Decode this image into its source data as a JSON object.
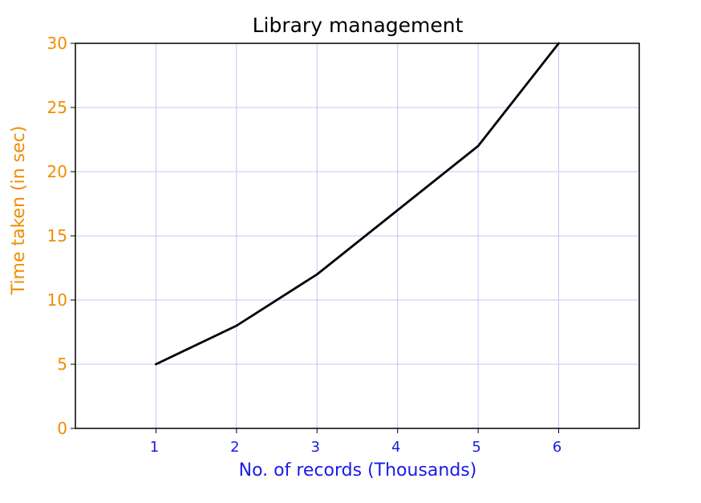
{
  "chart_data": {
    "type": "line",
    "title": "Library management",
    "xlabel": "No. of records (Thousands)",
    "ylabel": "Time taken (in sec)",
    "x": [
      1,
      2,
      3,
      4,
      5,
      6
    ],
    "series": [
      {
        "values": [
          5,
          8,
          12,
          17,
          22,
          30
        ]
      }
    ],
    "xlim": [
      0,
      7
    ],
    "ylim": [
      0,
      30
    ],
    "xticks": [
      1,
      2,
      3,
      4,
      5,
      6
    ],
    "yticks": [
      0,
      5,
      10,
      15,
      20,
      25,
      30
    ],
    "grid": true,
    "colors": {
      "line": "#000000",
      "grid": "#c4c4f5",
      "frame": "#000000",
      "x_axis_text": "#1a1ae6",
      "y_axis_text": "#f08c00"
    }
  }
}
